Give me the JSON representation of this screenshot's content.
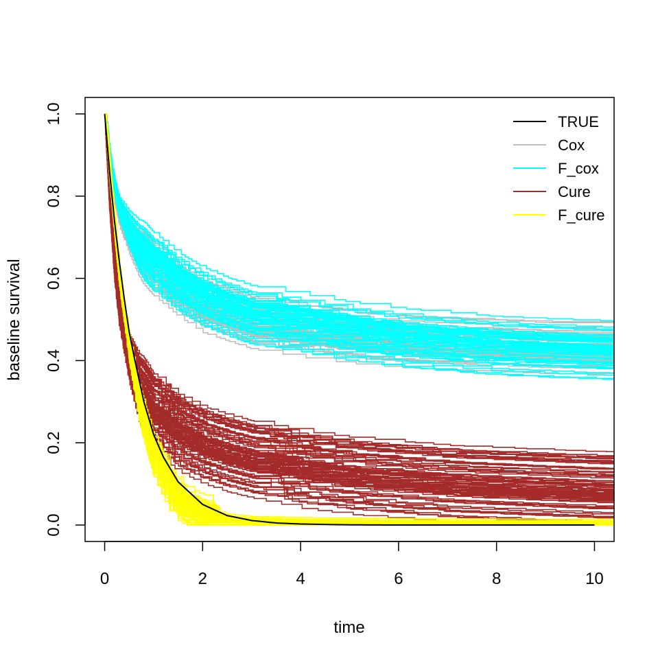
{
  "chart_data": {
    "type": "line",
    "title": "",
    "xlabel": "time",
    "ylabel": "baseline survival",
    "xlim": [
      -0.4,
      10.4
    ],
    "ylim": [
      -0.04,
      1.04
    ],
    "x_ticks": [
      0,
      2,
      4,
      6,
      8,
      10
    ],
    "x_tick_labels": [
      "0",
      "2",
      "4",
      "6",
      "8",
      "10"
    ],
    "y_ticks": [
      0.0,
      0.2,
      0.4,
      0.6,
      0.8,
      1.0
    ],
    "y_tick_labels": [
      "0.0",
      "0.2",
      "0.4",
      "0.6",
      "0.8",
      "1.0"
    ],
    "grid": false,
    "legend_position": "top-right",
    "legend": [
      {
        "label": "TRUE",
        "color": "#000000"
      },
      {
        "label": "Cox",
        "color": "#bebebe"
      },
      {
        "label": "F_cox",
        "color": "#00ffff"
      },
      {
        "label": "Cure",
        "color": "#a52a2a"
      },
      {
        "label": "F_cure",
        "color": "#ffff00"
      }
    ],
    "series": [
      {
        "name": "TRUE",
        "kind": "smooth curve",
        "color": "#000000",
        "x": [
          0,
          0.1,
          0.2,
          0.3,
          0.4,
          0.5,
          0.6,
          0.8,
          1.0,
          1.2,
          1.5,
          2.0,
          2.5,
          3.0,
          3.5,
          4.0,
          5.0,
          6.0,
          8.0,
          10.0
        ],
        "y": [
          1.0,
          0.86,
          0.74,
          0.64,
          0.55,
          0.47,
          0.41,
          0.3,
          0.22,
          0.165,
          0.105,
          0.05,
          0.023,
          0.011,
          0.005,
          0.0025,
          0.0005,
          0.0,
          0.0,
          0.0
        ]
      },
      {
        "name": "Cox",
        "kind": "step-function replicates",
        "color": "#bebebe",
        "replicates": 60,
        "x": [
          0,
          0.1,
          0.2,
          0.3,
          0.5,
          0.7,
          1.0,
          1.5,
          2.0,
          2.5,
          3.0,
          4.0,
          5.0,
          6.0,
          7.0,
          8.0,
          9.0,
          10.0,
          10.4
        ],
        "y": [
          1.0,
          0.87,
          0.8,
          0.75,
          0.7,
          0.66,
          0.62,
          0.57,
          0.53,
          0.51,
          0.49,
          0.47,
          0.455,
          0.445,
          0.44,
          0.435,
          0.43,
          0.43,
          0.43
        ],
        "spread": 0.045
      },
      {
        "name": "F_cox",
        "kind": "step-function replicates",
        "color": "#00ffff",
        "replicates": 60,
        "x": [
          0,
          0.1,
          0.2,
          0.3,
          0.5,
          0.7,
          1.0,
          1.5,
          2.0,
          2.5,
          3.0,
          4.0,
          5.0,
          6.0,
          7.0,
          8.0,
          9.0,
          10.0,
          10.4
        ],
        "y": [
          1.0,
          0.89,
          0.82,
          0.77,
          0.72,
          0.68,
          0.64,
          0.59,
          0.555,
          0.53,
          0.51,
          0.49,
          0.47,
          0.455,
          0.445,
          0.435,
          0.43,
          0.425,
          0.425
        ],
        "spread": 0.05
      },
      {
        "name": "Cure",
        "kind": "step-function replicates",
        "color": "#a52a2a",
        "replicates": 90,
        "x": [
          0,
          0.1,
          0.2,
          0.3,
          0.5,
          0.7,
          1.0,
          1.5,
          2.0,
          2.5,
          3.0,
          4.0,
          5.0,
          6.0,
          7.0,
          8.0,
          9.0,
          10.0,
          10.4
        ],
        "y": [
          1.0,
          0.78,
          0.62,
          0.52,
          0.41,
          0.34,
          0.28,
          0.23,
          0.2,
          0.18,
          0.165,
          0.14,
          0.125,
          0.115,
          0.105,
          0.1,
          0.095,
          0.09,
          0.09
        ],
        "spread": 0.055
      },
      {
        "name": "F_cure",
        "kind": "step-function replicates",
        "color": "#ffff00",
        "replicates": 70,
        "x": [
          0,
          0.1,
          0.2,
          0.3,
          0.5,
          0.7,
          1.0,
          1.3,
          1.6,
          2.0,
          2.5,
          3.0,
          4.0,
          5.0,
          6.0,
          8.0,
          10.0,
          10.4
        ],
        "y": [
          1.0,
          0.85,
          0.72,
          0.6,
          0.43,
          0.3,
          0.17,
          0.09,
          0.05,
          0.025,
          0.012,
          0.006,
          0.003,
          0.002,
          0.001,
          0.0,
          0.0,
          0.0
        ],
        "spread": 0.03
      }
    ]
  }
}
